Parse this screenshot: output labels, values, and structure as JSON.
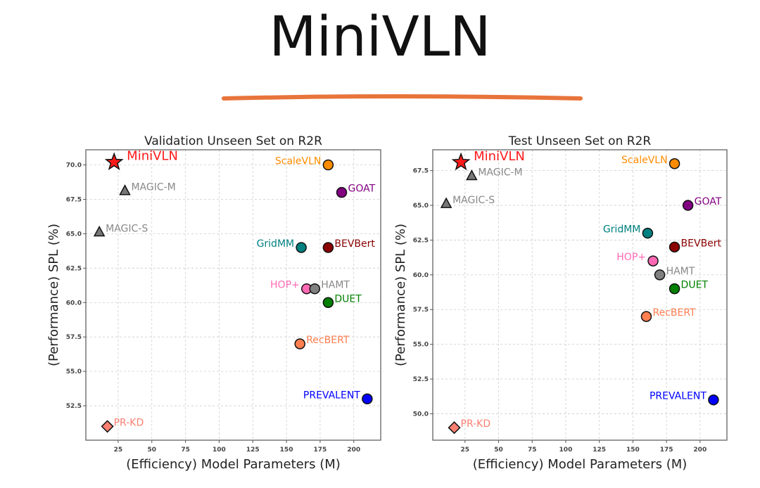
{
  "header": {
    "title": "MiniVLN",
    "underline_color": "#e8743b"
  },
  "chart_data": [
    {
      "type": "scatter",
      "title": "Validation Unseen Set on R2R",
      "xlabel": "(Efficiency) Model Parameters (M)",
      "ylabel": "(Performance) SPL (%)",
      "xlim": [
        1,
        220
      ],
      "ylim": [
        50.0,
        71.1
      ],
      "xticks": [
        25,
        50,
        75,
        100,
        125,
        150,
        175,
        200
      ],
      "yticks": [
        "52.5",
        "55.0",
        "57.5",
        "60.0",
        "62.5",
        "65.0",
        "67.5",
        "70.0"
      ],
      "grid": true,
      "points": [
        {
          "name": "MiniVLN",
          "x": 22,
          "y": 70.2,
          "marker": "star",
          "color": "#ff1a1a"
        },
        {
          "name": "MAGIC-M",
          "x": 30,
          "y": 68.1,
          "marker": "triangle",
          "color": "#808080"
        },
        {
          "name": "MAGIC-S",
          "x": 11,
          "y": 65.1,
          "marker": "triangle",
          "color": "#808080"
        },
        {
          "name": "PR-KD",
          "x": 17,
          "y": 51.0,
          "marker": "diamond",
          "color": "#fa8072"
        },
        {
          "name": "ScaleVLN",
          "x": 181,
          "y": 70.0,
          "marker": "circle",
          "color": "#ff8c00"
        },
        {
          "name": "GOAT",
          "x": 191,
          "y": 68.0,
          "marker": "circle",
          "color": "#800080"
        },
        {
          "name": "GridMM",
          "x": 161,
          "y": 64.0,
          "marker": "circle",
          "color": "#008080"
        },
        {
          "name": "BEVBert",
          "x": 181,
          "y": 64.0,
          "marker": "circle",
          "color": "#8b0000"
        },
        {
          "name": "HOP+",
          "x": 165,
          "y": 61.0,
          "marker": "circle",
          "color": "#ff69b4"
        },
        {
          "name": "HAMT",
          "x": 171,
          "y": 61.0,
          "marker": "circle",
          "color": "#808080"
        },
        {
          "name": "DUET",
          "x": 181,
          "y": 60.0,
          "marker": "circle",
          "color": "#008000"
        },
        {
          "name": "RecBERT",
          "x": 160,
          "y": 57.0,
          "marker": "circle",
          "color": "#ff7f50"
        },
        {
          "name": "PREVALENT",
          "x": 210,
          "y": 53.0,
          "marker": "circle",
          "color": "#0000ff"
        }
      ]
    },
    {
      "type": "scatter",
      "title": "Test Unseen Set on R2R",
      "xlabel": "(Efficiency) Model Parameters (M)",
      "ylabel": "(Performance) SPL (%)",
      "xlim": [
        1,
        220
      ],
      "ylim": [
        48.1,
        69.0
      ],
      "xticks": [
        25,
        50,
        75,
        100,
        125,
        150,
        175,
        200
      ],
      "yticks": [
        "50.0",
        "52.5",
        "55.0",
        "57.5",
        "60.0",
        "62.5",
        "65.0",
        "67.5"
      ],
      "grid": true,
      "points": [
        {
          "name": "MiniVLN",
          "x": 22,
          "y": 68.1,
          "marker": "star",
          "color": "#ff1a1a"
        },
        {
          "name": "MAGIC-M",
          "x": 30,
          "y": 67.1,
          "marker": "triangle",
          "color": "#808080"
        },
        {
          "name": "MAGIC-S",
          "x": 11,
          "y": 65.1,
          "marker": "triangle",
          "color": "#808080"
        },
        {
          "name": "PR-KD",
          "x": 17,
          "y": 49.0,
          "marker": "diamond",
          "color": "#fa8072"
        },
        {
          "name": "ScaleVLN",
          "x": 181,
          "y": 68.0,
          "marker": "circle",
          "color": "#ff8c00"
        },
        {
          "name": "GOAT",
          "x": 191,
          "y": 65.0,
          "marker": "circle",
          "color": "#800080"
        },
        {
          "name": "GridMM",
          "x": 161,
          "y": 63.0,
          "marker": "circle",
          "color": "#008080"
        },
        {
          "name": "BEVBert",
          "x": 181,
          "y": 62.0,
          "marker": "circle",
          "color": "#8b0000"
        },
        {
          "name": "HOP+",
          "x": 165,
          "y": 61.0,
          "marker": "circle",
          "color": "#ff69b4"
        },
        {
          "name": "HAMT",
          "x": 170,
          "y": 60.0,
          "marker": "circle",
          "color": "#808080"
        },
        {
          "name": "DUET",
          "x": 181,
          "y": 59.0,
          "marker": "circle",
          "color": "#008000"
        },
        {
          "name": "RecBERT",
          "x": 160,
          "y": 57.0,
          "marker": "circle",
          "color": "#ff7f50"
        },
        {
          "name": "PREVALENT",
          "x": 210,
          "y": 51.0,
          "marker": "circle",
          "color": "#0000ff"
        }
      ]
    }
  ]
}
